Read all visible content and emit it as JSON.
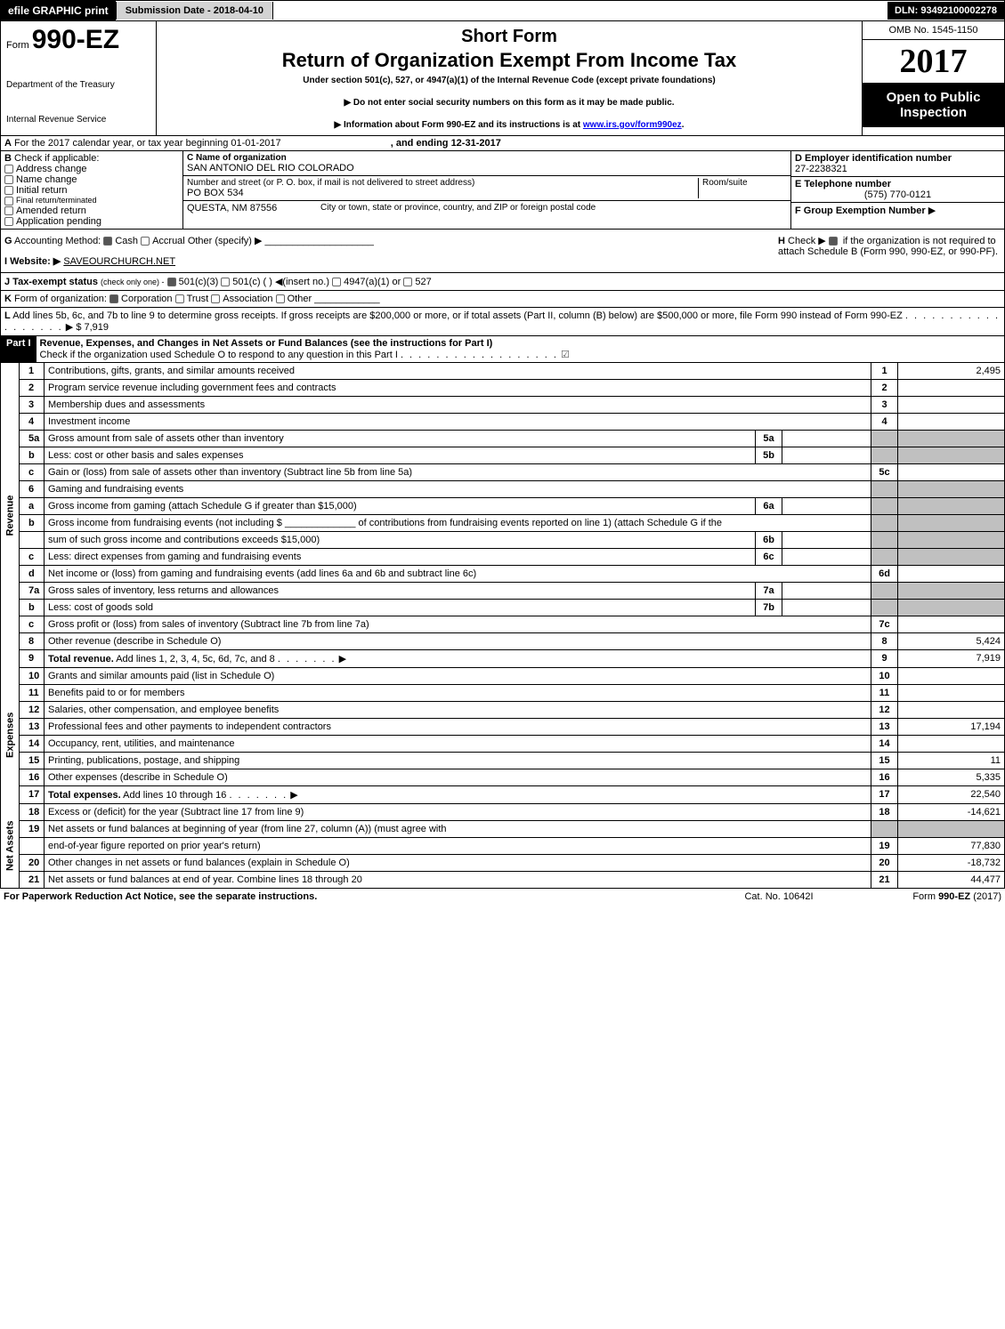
{
  "topbar": {
    "efile_btn": "efile GRAPHIC print",
    "submission_date_label": "Submission Date - 2018-04-10",
    "dln": "DLN: 93492100002278"
  },
  "header": {
    "form_prefix": "Form",
    "form_number": "990-EZ",
    "dept1": "Department of the Treasury",
    "dept2": "Internal Revenue Service",
    "short_form": "Short Form",
    "title": "Return of Organization Exempt From Income Tax",
    "subtitle": "Under section 501(c), 527, or 4947(a)(1) of the Internal Revenue Code (except private foundations)",
    "note1": "▶ Do not enter social security numbers on this form as it may be made public.",
    "note2": "▶ Information about Form 990-EZ and its instructions is at ",
    "note2_link": "www.irs.gov/form990ez",
    "omb": "OMB No. 1545-1150",
    "year": "2017",
    "open": "Open to Public Inspection"
  },
  "line_a": {
    "label": "A",
    "text": "For the 2017 calendar year, or tax year beginning 01-01-2017",
    "end_text": ", and ending 12-31-2017"
  },
  "box_b": {
    "label": "B",
    "check_text": "Check if applicable:",
    "items": [
      "Address change",
      "Name change",
      "Initial return",
      "Final return/terminated",
      "Amended return",
      "Application pending"
    ]
  },
  "box_c": {
    "name_label": "C Name of organization",
    "name": "SAN ANTONIO DEL RIO COLORADO",
    "street_label": "Number and street (or P. O. box, if mail is not delivered to street address)",
    "street": "PO BOX 534",
    "room_label": "Room/suite",
    "city_line": "QUESTA, NM  87556",
    "city_label": "City or town, state or province, country, and ZIP or foreign postal code"
  },
  "box_d": {
    "d_label": "D Employer identification number",
    "d_value": "27-2238321",
    "e_label": "E Telephone number",
    "e_value": "(575) 770-0121",
    "f_label": "F Group Exemption Number",
    "f_arrow": "▶"
  },
  "line_g": {
    "label": "G",
    "text": "Accounting Method:",
    "opt_cash": "Cash",
    "opt_accrual": "Accrual",
    "opt_other": "Other (specify) ▶"
  },
  "line_h": {
    "label": "H",
    "text1": "Check ▶",
    "text2": "if the organization is not required to attach Schedule B (Form 990, 990-EZ, or 990-PF)."
  },
  "line_i": {
    "label": "I Website: ▶",
    "value": "SAVEOURCHURCH.NET"
  },
  "line_j": {
    "label": "J Tax-exempt status",
    "sub": "(check only one) -",
    "opt1": "501(c)(3)",
    "opt2": "501(c) (   ) ◀(insert no.)",
    "opt3": "4947(a)(1) or",
    "opt4": "527"
  },
  "line_k": {
    "label": "K",
    "text": "Form of organization:",
    "opts": [
      "Corporation",
      "Trust",
      "Association",
      "Other"
    ]
  },
  "line_l": {
    "label": "L",
    "text": "Add lines 5b, 6c, and 7b to line 9 to determine gross receipts. If gross receipts are $200,000 or more, or if total assets (Part II, column (B) below) are $500,000 or more, file Form 990 instead of Form 990-EZ",
    "amount": "▶ $ 7,919"
  },
  "part1": {
    "label": "Part I",
    "title": "Revenue, Expenses, and Changes in Net Assets or Fund Balances (see the instructions for Part I)",
    "check_text": "Check if the organization used Schedule O to respond to any question in this Part I"
  },
  "sections": {
    "revenue": "Revenue",
    "expenses": "Expenses",
    "netassets": "Net Assets"
  },
  "rows": [
    {
      "section": "revenue",
      "ln": "1",
      "desc": "Contributions, gifts, grants, and similar amounts received",
      "num": "1",
      "val": "2,495"
    },
    {
      "section": "revenue",
      "ln": "2",
      "desc": "Program service revenue including government fees and contracts",
      "num": "2",
      "val": ""
    },
    {
      "section": "revenue",
      "ln": "3",
      "desc": "Membership dues and assessments",
      "num": "3",
      "val": ""
    },
    {
      "section": "revenue",
      "ln": "4",
      "desc": "Investment income",
      "num": "4",
      "val": ""
    },
    {
      "section": "revenue",
      "ln": "5a",
      "desc": "Gross amount from sale of assets other than inventory",
      "mid_ln": "5a",
      "mid_val": "",
      "shade_right": true
    },
    {
      "section": "revenue",
      "ln": "b",
      "desc": "Less: cost or other basis and sales expenses",
      "mid_ln": "5b",
      "mid_val": "",
      "shade_right": true
    },
    {
      "section": "revenue",
      "ln": "c",
      "desc": "Gain or (loss) from sale of assets other than inventory (Subtract line 5b from line 5a)",
      "num": "5c",
      "val": ""
    },
    {
      "section": "revenue",
      "ln": "6",
      "desc": "Gaming and fundraising events",
      "shade_right": true,
      "no_num": true
    },
    {
      "section": "revenue",
      "ln": "a",
      "desc": "Gross income from gaming (attach Schedule G if greater than $15,000)",
      "mid_ln": "6a",
      "mid_val": "",
      "shade_right": true
    },
    {
      "section": "revenue",
      "ln": "b",
      "desc": "Gross income from fundraising events (not including $ _____________ of contributions from fundraising events reported on line 1) (attach Schedule G if the",
      "shade_right": true,
      "no_mid": true,
      "no_num": true
    },
    {
      "section": "revenue",
      "ln": "",
      "desc": "sum of such gross income and contributions exceeds $15,000)",
      "mid_ln": "6b",
      "mid_val": "",
      "shade_right": true
    },
    {
      "section": "revenue",
      "ln": "c",
      "desc": "Less: direct expenses from gaming and fundraising events",
      "mid_ln": "6c",
      "mid_val": "",
      "shade_right": true
    },
    {
      "section": "revenue",
      "ln": "d",
      "desc": "Net income or (loss) from gaming and fundraising events (add lines 6a and 6b and subtract line 6c)",
      "num": "6d",
      "val": ""
    },
    {
      "section": "revenue",
      "ln": "7a",
      "desc": "Gross sales of inventory, less returns and allowances",
      "mid_ln": "7a",
      "mid_val": "",
      "shade_right": true
    },
    {
      "section": "revenue",
      "ln": "b",
      "desc": "Less: cost of goods sold",
      "mid_ln": "7b",
      "mid_val": "",
      "shade_right": true
    },
    {
      "section": "revenue",
      "ln": "c",
      "desc": "Gross profit or (loss) from sales of inventory (Subtract line 7b from line 7a)",
      "num": "7c",
      "val": ""
    },
    {
      "section": "revenue",
      "ln": "8",
      "desc": "Other revenue (describe in Schedule O)",
      "num": "8",
      "val": "5,424"
    },
    {
      "section": "revenue",
      "ln": "9",
      "desc": "Total revenue. Add lines 1, 2, 3, 4, 5c, 6d, 7c, and 8",
      "num": "9",
      "val": "7,919",
      "bold": true,
      "arrow": true
    },
    {
      "section": "expenses",
      "ln": "10",
      "desc": "Grants and similar amounts paid (list in Schedule O)",
      "num": "10",
      "val": ""
    },
    {
      "section": "expenses",
      "ln": "11",
      "desc": "Benefits paid to or for members",
      "num": "11",
      "val": ""
    },
    {
      "section": "expenses",
      "ln": "12",
      "desc": "Salaries, other compensation, and employee benefits",
      "num": "12",
      "val": ""
    },
    {
      "section": "expenses",
      "ln": "13",
      "desc": "Professional fees and other payments to independent contractors",
      "num": "13",
      "val": "17,194"
    },
    {
      "section": "expenses",
      "ln": "14",
      "desc": "Occupancy, rent, utilities, and maintenance",
      "num": "14",
      "val": ""
    },
    {
      "section": "expenses",
      "ln": "15",
      "desc": "Printing, publications, postage, and shipping",
      "num": "15",
      "val": "11"
    },
    {
      "section": "expenses",
      "ln": "16",
      "desc": "Other expenses (describe in Schedule O)",
      "num": "16",
      "val": "5,335"
    },
    {
      "section": "expenses",
      "ln": "17",
      "desc": "Total expenses. Add lines 10 through 16",
      "num": "17",
      "val": "22,540",
      "bold": true,
      "arrow": true
    },
    {
      "section": "netassets",
      "ln": "18",
      "desc": "Excess or (deficit) for the year (Subtract line 17 from line 9)",
      "num": "18",
      "val": "-14,621"
    },
    {
      "section": "netassets",
      "ln": "19",
      "desc": "Net assets or fund balances at beginning of year (from line 27, column (A)) (must agree with",
      "shade_right": true,
      "no_num": true
    },
    {
      "section": "netassets",
      "ln": "",
      "desc": "end-of-year figure reported on prior year's return)",
      "num": "19",
      "val": "77,830"
    },
    {
      "section": "netassets",
      "ln": "20",
      "desc": "Other changes in net assets or fund balances (explain in Schedule O)",
      "num": "20",
      "val": "-18,732"
    },
    {
      "section": "netassets",
      "ln": "21",
      "desc": "Net assets or fund balances at end of year. Combine lines 18 through 20",
      "num": "21",
      "val": "44,477"
    }
  ],
  "footer": {
    "left": "For Paperwork Reduction Act Notice, see the separate instructions.",
    "center": "Cat. No. 10642I",
    "right": "Form 990-EZ (2017)"
  },
  "colors": {
    "black": "#000000",
    "shade": "#c0c0c0",
    "link": "#0000ee"
  }
}
